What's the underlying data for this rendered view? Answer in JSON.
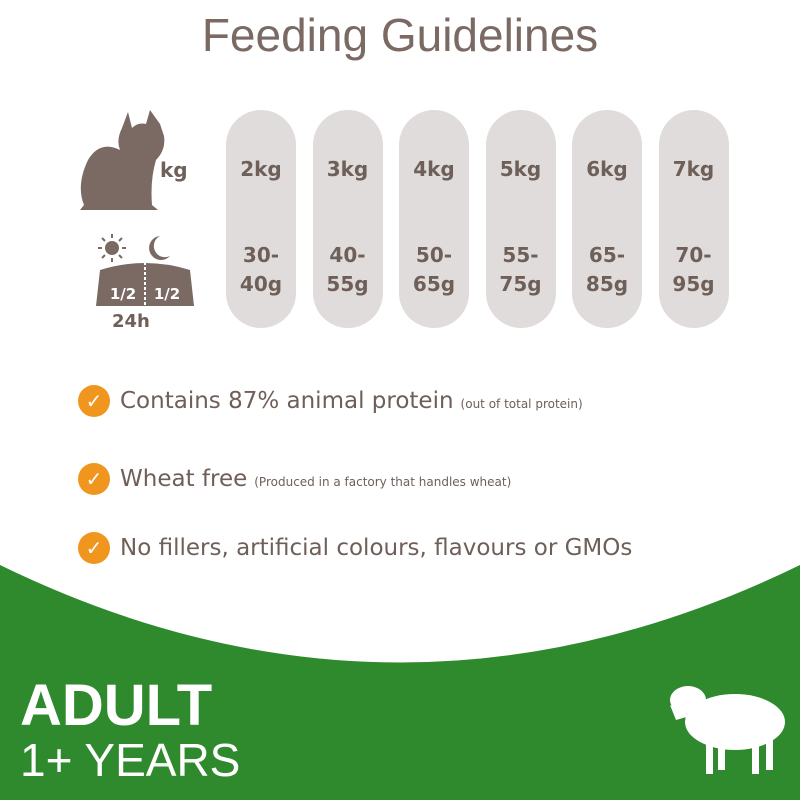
{
  "title": "Feeding Guidelines",
  "weight_label": "kg",
  "bowl_labels": {
    "left": "1/2",
    "right": "1/2",
    "period": "24h"
  },
  "columns": [
    {
      "weight": "2kg",
      "amount_lines": [
        "30-",
        "40g"
      ]
    },
    {
      "weight": "3kg",
      "amount_lines": [
        "40-",
        "55g"
      ]
    },
    {
      "weight": "4kg",
      "amount_lines": [
        "50-",
        "65g"
      ]
    },
    {
      "weight": "5kg",
      "amount_lines": [
        "55-",
        "75g"
      ]
    },
    {
      "weight": "6kg",
      "amount_lines": [
        "65-",
        "85g"
      ]
    },
    {
      "weight": "7kg",
      "amount_lines": [
        "70-",
        "95g"
      ]
    }
  ],
  "features": [
    {
      "text": "Contains 87% animal protein",
      "note": "(out of total protein)"
    },
    {
      "text": "Wheat free",
      "note": "(Produced in a factory that handles wheat)"
    },
    {
      "text": "No fillers, artificial colours, flavours or GMOs"
    }
  ],
  "footer": {
    "line1": "ADULT",
    "line2": "1+ YEARS"
  }
}
